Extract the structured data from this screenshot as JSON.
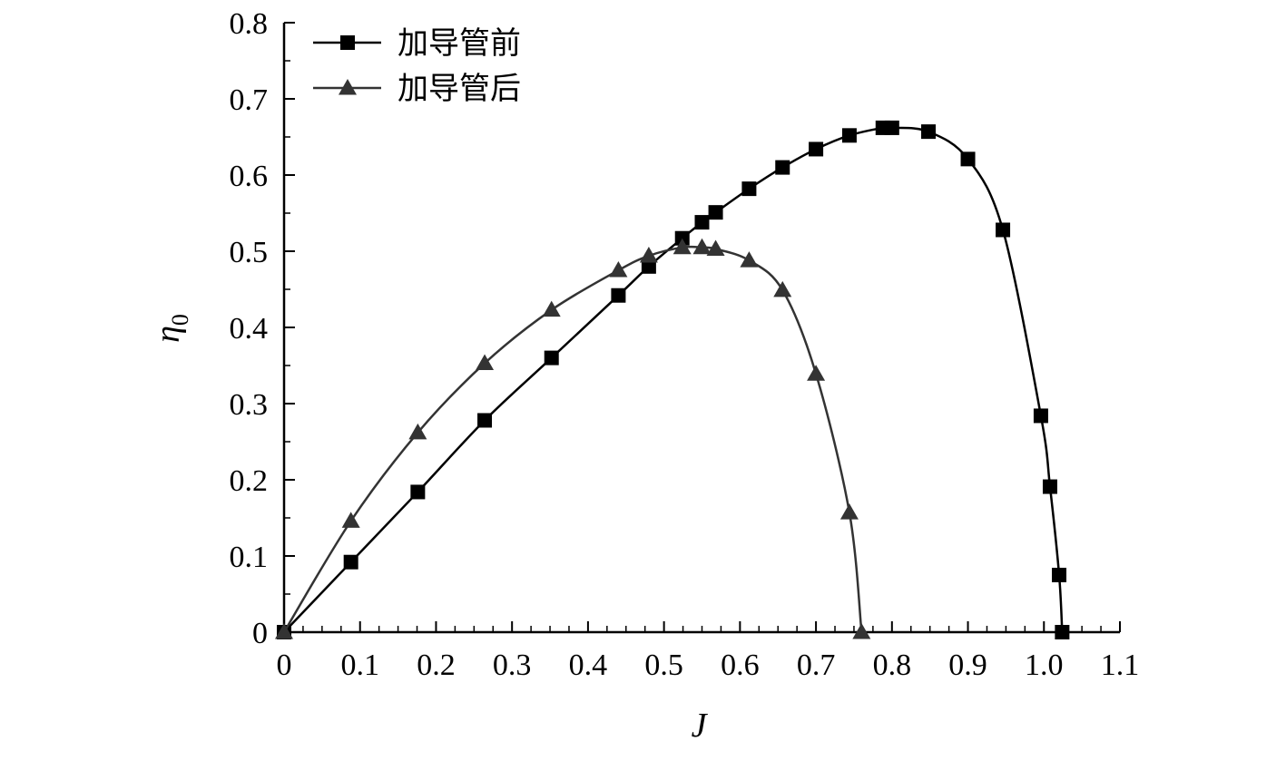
{
  "chart_data": {
    "type": "line",
    "xlabel": "J",
    "ylabel": {
      "base": "η",
      "sub": "0"
    },
    "xlim": [
      0,
      1.1
    ],
    "ylim": [
      0,
      0.8
    ],
    "xticks": [
      "0",
      "0.1",
      "0.2",
      "0.3",
      "0.4",
      "0.5",
      "0.6",
      "0.7",
      "0.8",
      "0.9",
      "1.0",
      "1.1"
    ],
    "yticks": [
      "0",
      "0.1",
      "0.2",
      "0.3",
      "0.4",
      "0.5",
      "0.6",
      "0.7",
      "0.8"
    ],
    "grid": false,
    "legend_position": "top-left",
    "series": [
      {
        "name": "加导管前",
        "marker": "square",
        "color": "#000000",
        "points": [
          [
            0.0,
            0.0
          ],
          [
            0.088,
            0.092
          ],
          [
            0.176,
            0.184
          ],
          [
            0.264,
            0.278
          ],
          [
            0.352,
            0.36
          ],
          [
            0.44,
            0.442
          ],
          [
            0.48,
            0.48
          ],
          [
            0.524,
            0.517
          ],
          [
            0.55,
            0.538
          ],
          [
            0.568,
            0.551
          ],
          [
            0.612,
            0.582
          ],
          [
            0.656,
            0.61
          ],
          [
            0.7,
            0.634
          ],
          [
            0.744,
            0.652
          ],
          [
            0.788,
            0.662
          ],
          [
            0.8,
            0.662
          ],
          [
            0.848,
            0.657
          ],
          [
            0.9,
            0.621
          ],
          [
            0.946,
            0.528
          ],
          [
            0.996,
            0.284
          ],
          [
            1.008,
            0.191
          ],
          [
            1.02,
            0.075
          ],
          [
            1.024,
            0.0
          ]
        ]
      },
      {
        "name": "加导管后",
        "marker": "triangle",
        "color": "#333333",
        "points": [
          [
            0.0,
            0.0
          ],
          [
            0.088,
            0.146
          ],
          [
            0.176,
            0.262
          ],
          [
            0.264,
            0.353
          ],
          [
            0.352,
            0.423
          ],
          [
            0.44,
            0.475
          ],
          [
            0.48,
            0.494
          ],
          [
            0.524,
            0.505
          ],
          [
            0.55,
            0.505
          ],
          [
            0.568,
            0.503
          ],
          [
            0.612,
            0.488
          ],
          [
            0.656,
            0.449
          ],
          [
            0.7,
            0.339
          ],
          [
            0.744,
            0.157
          ],
          [
            0.76,
            0.0
          ]
        ]
      }
    ]
  }
}
